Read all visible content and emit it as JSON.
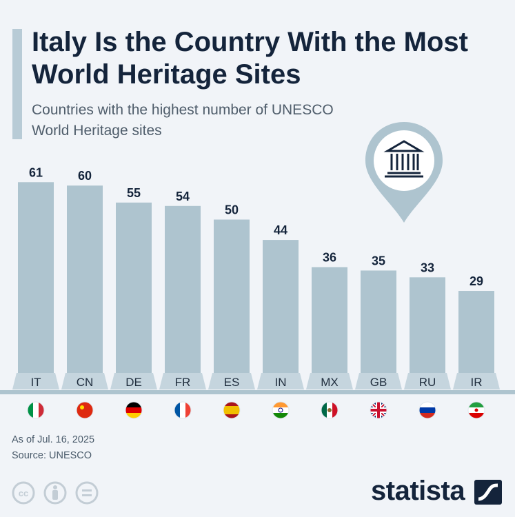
{
  "header": {
    "title": "Italy Is the Country With the Most World Heritage Sites",
    "subtitle": "Countries with the highest number of UNESCO World Heritage sites"
  },
  "chart_data": {
    "type": "bar",
    "categories": [
      "IT",
      "CN",
      "DE",
      "FR",
      "ES",
      "IN",
      "MX",
      "GB",
      "RU",
      "IR"
    ],
    "values": [
      61,
      60,
      55,
      54,
      50,
      44,
      36,
      35,
      33,
      29
    ],
    "flags": [
      "Italy",
      "China",
      "Germany",
      "France",
      "Spain",
      "India",
      "Mexico",
      "United Kingdom",
      "Russia",
      "Iran"
    ],
    "title": "Italy Is the Country With the Most World Heritage Sites",
    "subtitle": "Countries with the highest number of UNESCO World Heritage sites",
    "bar_color": "#aec4cf",
    "label_color": "#14243b",
    "legend": "none",
    "grid": false
  },
  "footer": {
    "date": "As of Jul. 16, 2025",
    "source": "Source: UNESCO",
    "brand": "statista"
  },
  "icons": {
    "pin": "landmark-pin-icon",
    "license": [
      "cc-icon",
      "attribution-icon",
      "no-derivatives-icon"
    ],
    "brand": "statista-logo-icon"
  }
}
